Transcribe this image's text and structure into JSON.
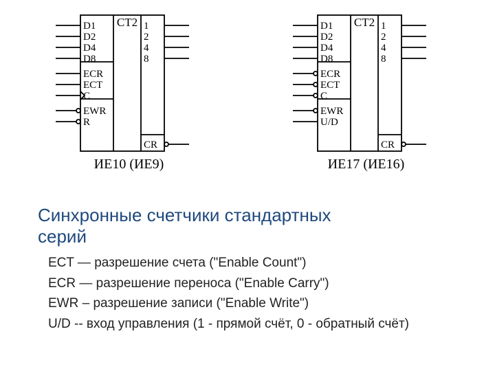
{
  "colors": {
    "bg": "#ffffff",
    "stroke": "#000000",
    "text": "#000000",
    "title": "#1f497d",
    "legend_text": "#222222"
  },
  "typography": {
    "chip_font": "Times New Roman",
    "chip_pin_fontsize": 15,
    "chip_caption_fontsize": 20,
    "title_font": "Arial",
    "title_fontsize": 26,
    "legend_font": "Arial",
    "legend_fontsize": 19
  },
  "chip_style": {
    "outer_width": 122,
    "outer_height": 198,
    "col1_width": 48,
    "col2_width": 40,
    "col3_width": 34,
    "stroke_width": 1.8,
    "lead_length": 36,
    "bubble_radius": 3,
    "arrow_size": 6
  },
  "chips": [
    {
      "id": "chip_a",
      "header": "CT2",
      "caption": "ИЕ10 (ИЕ9)",
      "left_groups": [
        {
          "pins": [
            {
              "label": "D1",
              "lead": "plain"
            },
            {
              "label": "D2",
              "lead": "plain"
            },
            {
              "label": "D4",
              "lead": "plain"
            },
            {
              "label": "D8",
              "lead": "plain"
            }
          ]
        },
        {
          "pins": [
            {
              "label": "ECR",
              "lead": "plain"
            },
            {
              "label": "ECT",
              "lead": "plain"
            },
            {
              "label": "C",
              "lead": "arrow"
            }
          ]
        },
        {
          "pins": [
            {
              "label": "EWR",
              "lead": "bubble"
            },
            {
              "label": "R",
              "lead": "bubble"
            }
          ]
        }
      ],
      "right_groups": [
        {
          "pins": [
            {
              "label": "1"
            },
            {
              "label": "2"
            },
            {
              "label": "4"
            },
            {
              "label": "8"
            }
          ]
        },
        {
          "pins": [
            {
              "label": "CR",
              "bubble": true
            }
          ],
          "bottom": true
        }
      ]
    },
    {
      "id": "chip_b",
      "header": "CT2",
      "caption": "ИЕ17 (ИЕ16)",
      "left_groups": [
        {
          "pins": [
            {
              "label": "D1",
              "lead": "plain"
            },
            {
              "label": "D2",
              "lead": "plain"
            },
            {
              "label": "D4",
              "lead": "plain"
            },
            {
              "label": "D8",
              "lead": "plain"
            }
          ]
        },
        {
          "pins": [
            {
              "label": "ECR",
              "lead": "bubble"
            },
            {
              "label": "ECT",
              "lead": "bubble"
            },
            {
              "label": "C",
              "lead": "bubble"
            }
          ]
        },
        {
          "pins": [
            {
              "label": "EWR",
              "lead": "bubble"
            },
            {
              "label": "U/D",
              "lead": "plain"
            }
          ]
        }
      ],
      "right_groups": [
        {
          "pins": [
            {
              "label": "1"
            },
            {
              "label": "2"
            },
            {
              "label": "4"
            },
            {
              "label": "8"
            }
          ]
        },
        {
          "pins": [
            {
              "label": "CR",
              "bubble": true
            }
          ],
          "bottom": true
        }
      ]
    }
  ],
  "title_lines": [
    "Синхронные счетчики стандартных",
    "серий"
  ],
  "legend": [
    "ECT — разрешение счета (\"Enable Count\")",
    "ECR — разрешение переноса (\"Enable Carry\")",
    "EWR – разрешение записи (\"Enable Write\")",
    "U/D  -- вход управления (1 - прямой счёт, 0 - обратный счёт)"
  ]
}
